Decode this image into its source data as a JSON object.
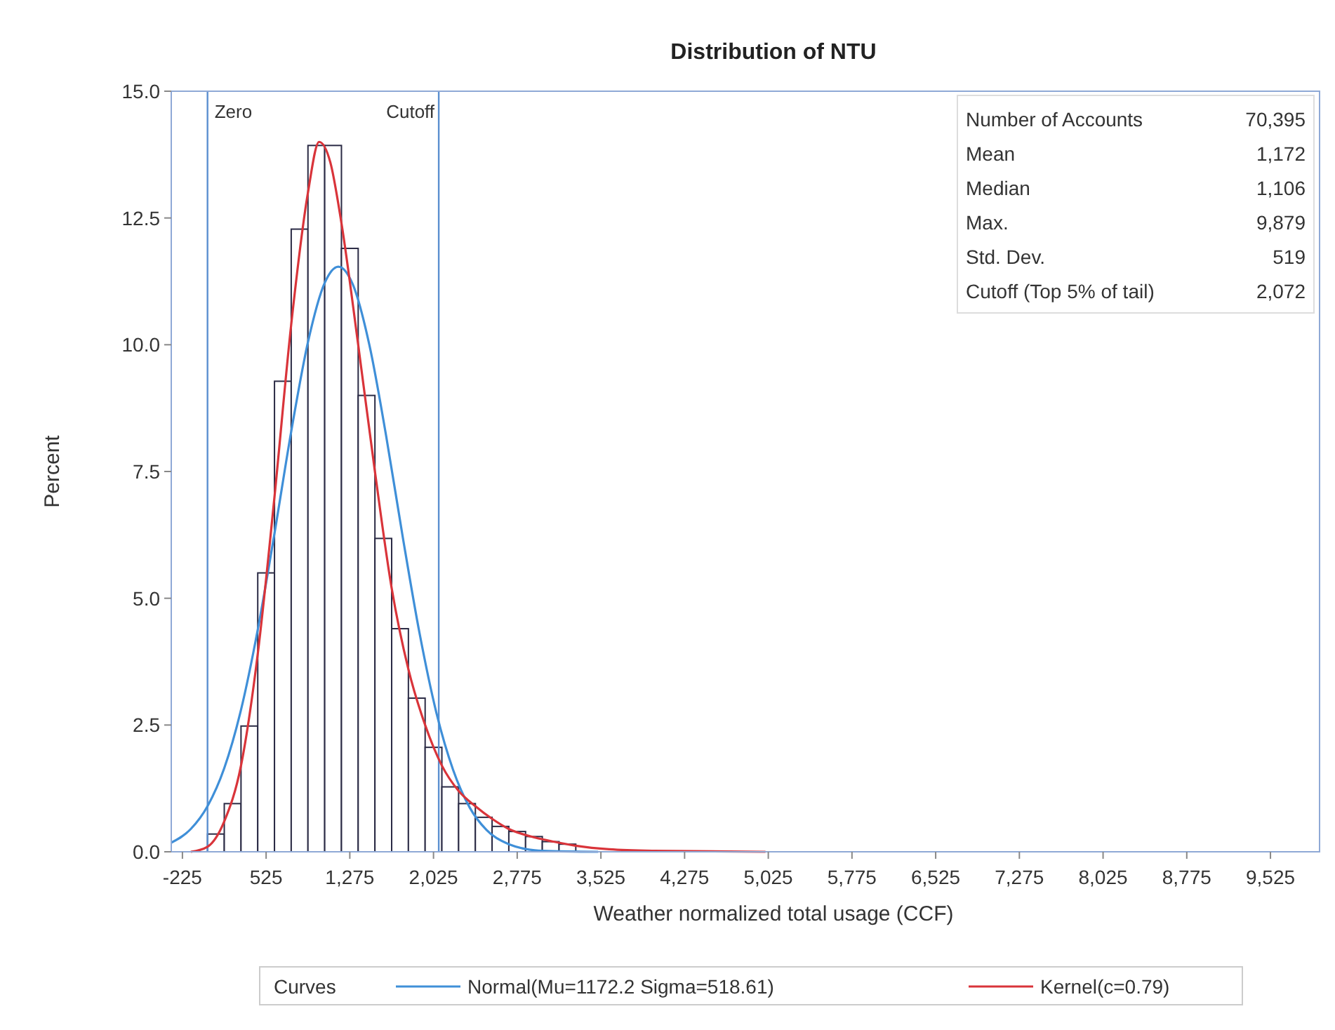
{
  "chart_data": {
    "type": "histogram",
    "title": "Distribution of NTU",
    "xlabel": "Weather normalized total usage (CCF)",
    "ylabel": "Percent",
    "legend_title": "Curves",
    "bins": [
      0,
      150,
      300,
      450,
      600,
      750,
      900,
      1050,
      1200,
      1350,
      1500,
      1650,
      1800,
      1950,
      2100,
      2250,
      2400,
      2550,
      2700,
      2850,
      3000,
      3150,
      3300
    ],
    "values": [
      0.35,
      0.95,
      2.48,
      5.5,
      9.28,
      12.28,
      13.93,
      13.93,
      11.9,
      9.0,
      6.18,
      4.4,
      3.03,
      2.06,
      1.28,
      0.95,
      0.68,
      0.5,
      0.4,
      0.3,
      0.2,
      0.15
    ],
    "color": "#ffffff",
    "series": [
      {
        "type": "line",
        "name": "Normal(Mu=1172.2 Sigma=518.61)",
        "color": "#3f8fd8",
        "x": [
          -325,
          -150,
          0,
          150,
          300,
          450,
          600,
          750,
          900,
          1050,
          1172,
          1300,
          1450,
          1600,
          1750,
          1900,
          2050,
          2200,
          2350,
          2500,
          2700,
          3000,
          3500
        ],
        "values": [
          0.18,
          0.45,
          0.9,
          1.65,
          2.8,
          4.38,
          6.28,
          8.29,
          10.05,
          11.22,
          11.54,
          11.2,
          10.0,
          8.21,
          6.2,
          4.31,
          2.75,
          1.62,
          0.87,
          0.43,
          0.15,
          0.02,
          0
        ]
      },
      {
        "type": "line",
        "name": "Kernel(c=0.79)",
        "color": "#d9343a",
        "x": [
          -150,
          0,
          150,
          300,
          450,
          600,
          750,
          900,
          1000,
          1100,
          1200,
          1350,
          1500,
          1650,
          1800,
          1950,
          2100,
          2250,
          2400,
          2550,
          2700,
          2900,
          3100,
          3300,
          3600,
          4000,
          5000
        ],
        "values": [
          0,
          0.1,
          0.6,
          1.7,
          3.9,
          7.0,
          10.4,
          13.0,
          14.0,
          13.6,
          12.4,
          10.0,
          7.5,
          5.2,
          3.6,
          2.5,
          1.7,
          1.2,
          0.9,
          0.65,
          0.45,
          0.3,
          0.2,
          0.12,
          0.05,
          0.02,
          0
        ]
      }
    ],
    "xlim": [
      -325,
      9965
    ],
    "ylim": [
      0,
      15
    ],
    "xticks": [
      -225,
      525,
      {
        "value": 1275,
        "label": "1,275"
      },
      {
        "value": 2025,
        "label": "2,025"
      },
      {
        "value": 2775,
        "label": "2,775"
      },
      {
        "value": 3525,
        "label": "3,525"
      },
      {
        "value": 4275,
        "label": "4,275"
      },
      {
        "value": 5025,
        "label": "5,025"
      },
      {
        "value": 5775,
        "label": "5,775"
      },
      {
        "value": 6525,
        "label": "6,525"
      },
      {
        "value": 7275,
        "label": "7,275"
      },
      {
        "value": 8025,
        "label": "8,025"
      },
      {
        "value": 8775,
        "label": "8,775"
      },
      {
        "value": 9525,
        "label": "9,525"
      }
    ],
    "yticks": [
      {
        "value": 0,
        "label": "0.0"
      },
      2.5,
      {
        "value": 5,
        "label": "5.0"
      },
      7.5,
      {
        "value": 10,
        "label": "10.0"
      },
      12.5,
      {
        "value": 15,
        "label": "15.0"
      }
    ],
    "ref_lines": [
      {
        "axis": "x",
        "value": 0,
        "label": "Zero",
        "color": "#5b8fd0"
      },
      {
        "axis": "x",
        "value": 2072,
        "label": "Cutoff",
        "color": "#5b8fd0"
      }
    ],
    "annotations": [
      "Number of Accounts",
      "70,395",
      "Mean",
      "1,172",
      "Median",
      "1,106",
      "Max.",
      "9,879",
      "Std. Dev.",
      "519",
      "Cutoff (Top 5% of tail)",
      "2,072"
    ],
    "legend": "bottom",
    "grid": false,
    "marker": "none",
    "line_style": "solid"
  }
}
